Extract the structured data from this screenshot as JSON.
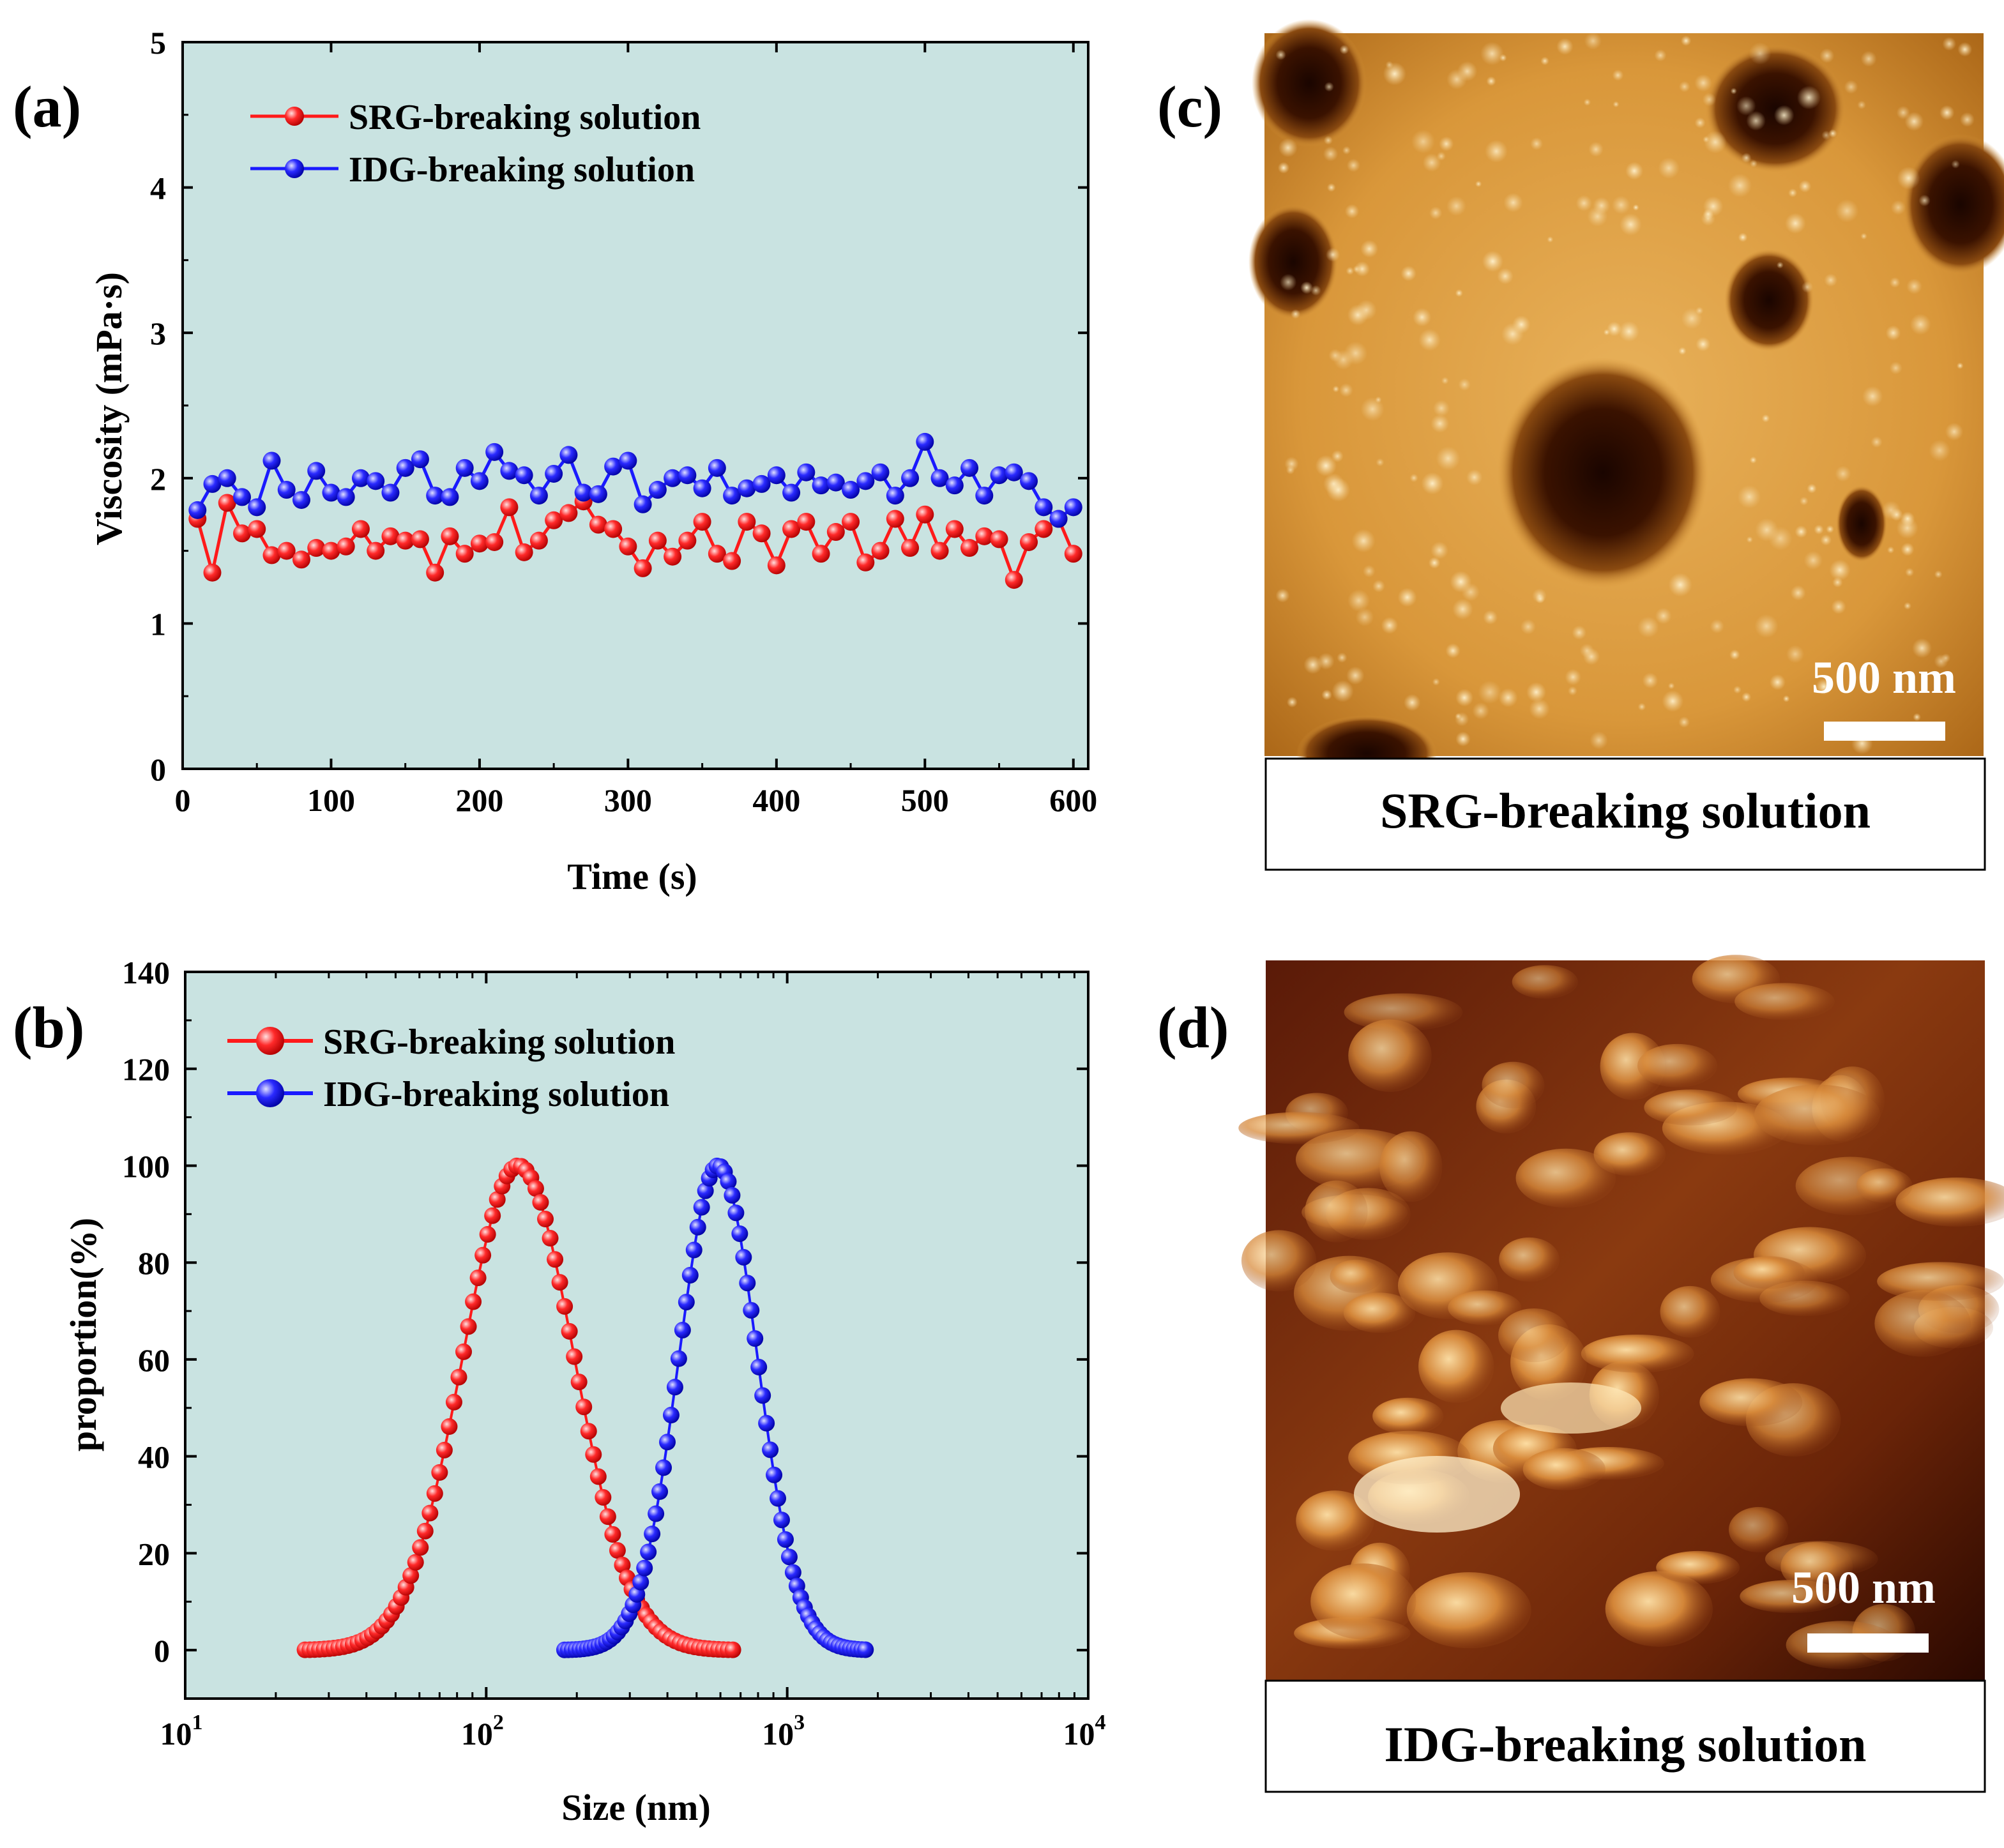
{
  "panels": {
    "a": "(a)",
    "b": "(b)",
    "c": "(c)",
    "d": "(d)"
  },
  "colors": {
    "srg": "#ff1a1a",
    "idg": "#1a1aff",
    "plot_bg": "#c9e3e1"
  },
  "chart_data": [
    {
      "type": "line",
      "panel": "(a)",
      "title": "",
      "xlabel": "Time (s)",
      "ylabel": "Viscosity (mPa·s)",
      "xlim": [
        0,
        610
      ],
      "ylim": [
        0,
        5
      ],
      "xticks": [
        0,
        100,
        200,
        300,
        400,
        500,
        600
      ],
      "xtick_labels": [
        "0",
        "100",
        "200",
        "300",
        "400",
        "500",
        "600"
      ],
      "yticks": [
        0,
        1,
        2,
        3,
        4,
        5
      ],
      "ytick_labels": [
        "0",
        "1",
        "2",
        "3",
        "4",
        "5"
      ],
      "legend_position": "top-left",
      "x": [
        10,
        20,
        30,
        40,
        50,
        60,
        70,
        80,
        90,
        100,
        110,
        120,
        130,
        140,
        150,
        160,
        170,
        180,
        190,
        200,
        210,
        220,
        230,
        240,
        250,
        260,
        270,
        280,
        290,
        300,
        310,
        320,
        330,
        340,
        350,
        360,
        370,
        380,
        390,
        400,
        410,
        420,
        430,
        440,
        450,
        460,
        470,
        480,
        490,
        500,
        510,
        520,
        530,
        540,
        550,
        560,
        570,
        580,
        590,
        600
      ],
      "series": [
        {
          "name": "SRG-breaking solution",
          "color": "#ff1a1a",
          "values": [
            1.72,
            1.35,
            1.83,
            1.62,
            1.65,
            1.47,
            1.5,
            1.44,
            1.52,
            1.5,
            1.53,
            1.65,
            1.5,
            1.6,
            1.57,
            1.58,
            1.35,
            1.6,
            1.48,
            1.55,
            1.56,
            1.8,
            1.49,
            1.57,
            1.71,
            1.76,
            1.84,
            1.68,
            1.65,
            1.53,
            1.38,
            1.57,
            1.46,
            1.57,
            1.7,
            1.48,
            1.43,
            1.7,
            1.62,
            1.4,
            1.65,
            1.7,
            1.48,
            1.63,
            1.7,
            1.42,
            1.5,
            1.72,
            1.52,
            1.75,
            1.5,
            1.65,
            1.52,
            1.6,
            1.58,
            1.3,
            1.56,
            1.65,
            1.72,
            1.48
          ]
        },
        {
          "name": "IDG-breaking solution",
          "color": "#1a1aff",
          "values": [
            1.78,
            1.96,
            2.0,
            1.87,
            1.8,
            2.12,
            1.92,
            1.85,
            2.05,
            1.9,
            1.87,
            2.0,
            1.98,
            1.9,
            2.07,
            2.13,
            1.88,
            1.87,
            2.07,
            1.98,
            2.18,
            2.05,
            2.02,
            1.88,
            2.03,
            2.16,
            1.9,
            1.89,
            2.08,
            2.12,
            1.82,
            1.92,
            2.0,
            2.02,
            1.93,
            2.07,
            1.88,
            1.93,
            1.96,
            2.02,
            1.9,
            2.04,
            1.95,
            1.97,
            1.92,
            1.98,
            2.04,
            1.88,
            2.0,
            2.25,
            2.0,
            1.95,
            2.07,
            1.88,
            2.02,
            2.04,
            1.98,
            1.8,
            1.72,
            1.8
          ]
        }
      ]
    },
    {
      "type": "scatter",
      "panel": "(b)",
      "title": "",
      "xlabel": "Size (nm)",
      "ylabel": "proportion(%)",
      "xscale": "log",
      "xlim": [
        10,
        10000
      ],
      "ylim": [
        -10,
        140
      ],
      "xticks": [
        10,
        100,
        1000,
        10000
      ],
      "xtick_labels": [
        {
          "base": "10",
          "exp": "1"
        },
        {
          "base": "10",
          "exp": "2"
        },
        {
          "base": "10",
          "exp": "3"
        },
        {
          "base": "10",
          "exp": "4"
        }
      ],
      "yticks": [
        0,
        20,
        40,
        60,
        80,
        100,
        120,
        140
      ],
      "ytick_labels": [
        "0",
        "20",
        "40",
        "60",
        "80",
        "100",
        "120",
        "140"
      ],
      "legend_position": "top-left",
      "series": [
        {
          "name": "SRG-breaking solution",
          "color": "#ff1a1a",
          "distribution": "lognormal",
          "peak_size_nm": 128,
          "peak_percent": 100,
          "sigma_log10": 0.185,
          "size_range_nm": [
            25,
            660
          ],
          "points": 90
        },
        {
          "name": "IDG-breaking solution",
          "color": "#1a1aff",
          "distribution": "lognormal",
          "peak_size_nm": 590,
          "peak_percent": 100,
          "sigma_log10": 0.13,
          "size_range_nm": [
            182,
            1820
          ],
          "points": 80
        }
      ]
    }
  ],
  "afm_images": [
    {
      "panel": "(c)",
      "caption": "SRG-breaking solution",
      "scale_bar": "500 nm"
    },
    {
      "panel": "(d)",
      "caption": "IDG-breaking solution",
      "scale_bar": "500 nm"
    }
  ]
}
